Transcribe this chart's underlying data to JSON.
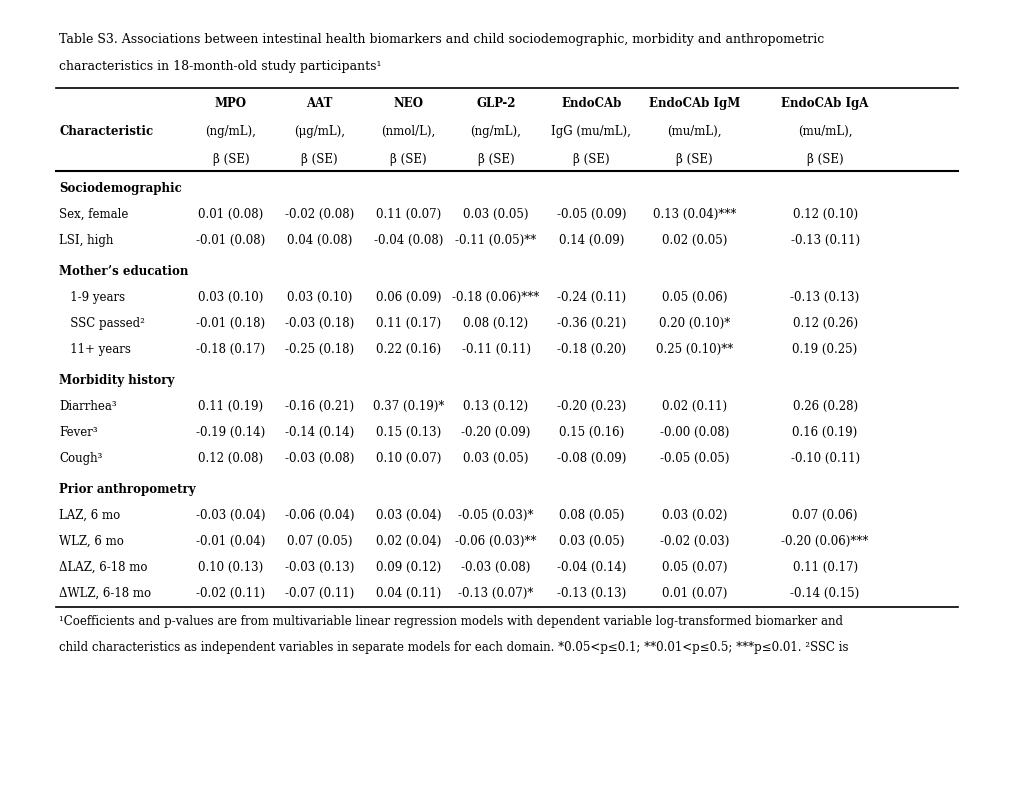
{
  "title_line1": "Table S3. Associations between intestinal health biomarkers and child sociodemographic, morbidity and anthropometric",
  "title_line2": "characteristics in 18-month-old study participants¹",
  "footnote_line1": "¹Coefficients and p-values are from multivariable linear regression models with dependent variable log-transformed biomarker and",
  "footnote_line2": "child characteristics as independent variables in separate models for each domain. *0.05<p≤0.1; **0.01<p≤0.5; ***p≤0.01. ²SSC is",
  "col_headers": [
    [
      "",
      "MPO",
      "AAT",
      "NEO",
      "GLP-2",
      "EndoCAb",
      "EndoCAb IgM",
      "EndoCAb IgA"
    ],
    [
      "Characteristic",
      "(ng/mL),",
      "(μg/mL),",
      "(nmol/L),",
      "(ng/mL),",
      "IgG (mu/mL),",
      "(mu/mL),",
      "(mu/mL),"
    ],
    [
      "",
      "β (SE)",
      "β (SE)",
      "β (SE)",
      "β (SE)",
      "β (SE)",
      "β (SE)",
      "β (SE)"
    ]
  ],
  "sections": [
    {
      "header": "Sociodemographic",
      "rows": [
        [
          "Sex, female",
          "0.01 (0.08)",
          "-0.02 (0.08)",
          "0.11 (0.07)",
          "0.03 (0.05)",
          "-0.05 (0.09)",
          "0.13 (0.04)***",
          "0.12 (0.10)"
        ],
        [
          "LSI, high",
          "-0.01 (0.08)",
          "0.04 (0.08)",
          "-0.04 (0.08)",
          "-0.11 (0.05)**",
          "0.14 (0.09)",
          "0.02 (0.05)",
          "-0.13 (0.11)"
        ]
      ]
    },
    {
      "header": "Mother’s education",
      "rows": [
        [
          "   1-9 years",
          "0.03 (0.10)",
          "0.03 (0.10)",
          "0.06 (0.09)",
          "-0.18 (0.06)***",
          "-0.24 (0.11)",
          "0.05 (0.06)",
          "-0.13 (0.13)"
        ],
        [
          "   SSC passed²",
          "-0.01 (0.18)",
          "-0.03 (0.18)",
          "0.11 (0.17)",
          "0.08 (0.12)",
          "-0.36 (0.21)",
          "0.20 (0.10)*",
          "0.12 (0.26)"
        ],
        [
          "   11+ years",
          "-0.18 (0.17)",
          "-0.25 (0.18)",
          "0.22 (0.16)",
          "-0.11 (0.11)",
          "-0.18 (0.20)",
          "0.25 (0.10)**",
          "0.19 (0.25)"
        ]
      ]
    },
    {
      "header": "Morbidity history",
      "rows": [
        [
          "Diarrhea³",
          "0.11 (0.19)",
          "-0.16 (0.21)",
          "0.37 (0.19)*",
          "0.13 (0.12)",
          "-0.20 (0.23)",
          "0.02 (0.11)",
          "0.26 (0.28)"
        ],
        [
          "Fever³",
          "-0.19 (0.14)",
          "-0.14 (0.14)",
          "0.15 (0.13)",
          "-0.20 (0.09)",
          "0.15 (0.16)",
          "-0.00 (0.08)",
          "0.16 (0.19)"
        ],
        [
          "Cough³",
          "0.12 (0.08)",
          "-0.03 (0.08)",
          "0.10 (0.07)",
          "0.03 (0.05)",
          "-0.08 (0.09)",
          "-0.05 (0.05)",
          "-0.10 (0.11)"
        ]
      ]
    },
    {
      "header": "Prior anthropometry",
      "rows": [
        [
          "LAZ, 6 mo",
          "-0.03 (0.04)",
          "-0.06 (0.04)",
          "0.03 (0.04)",
          "-0.05 (0.03)*",
          "0.08 (0.05)",
          "0.03 (0.02)",
          "0.07 (0.06)"
        ],
        [
          "WLZ, 6 mo",
          "-0.01 (0.04)",
          "0.07 (0.05)",
          "0.02 (0.04)",
          "-0.06 (0.03)**",
          "0.03 (0.05)",
          "-0.02 (0.03)",
          "-0.20 (0.06)***"
        ],
        [
          "ΔLAZ, 6-18 mo",
          "0.10 (0.13)",
          "-0.03 (0.13)",
          "0.09 (0.12)",
          "-0.03 (0.08)",
          "-0.04 (0.14)",
          "0.05 (0.07)",
          "0.11 (0.17)"
        ],
        [
          "ΔWLZ, 6-18 mo",
          "-0.02 (0.11)",
          "-0.07 (0.11)",
          "0.04 (0.11)",
          "-0.13 (0.07)*",
          "-0.13 (0.13)",
          "0.01 (0.07)",
          "-0.14 (0.15)"
        ]
      ]
    }
  ],
  "bg_color": "white",
  "text_color": "black",
  "header_fontsize": 8.5,
  "body_fontsize": 8.5,
  "title_fontsize": 9,
  "footnote_fontsize": 8.5
}
